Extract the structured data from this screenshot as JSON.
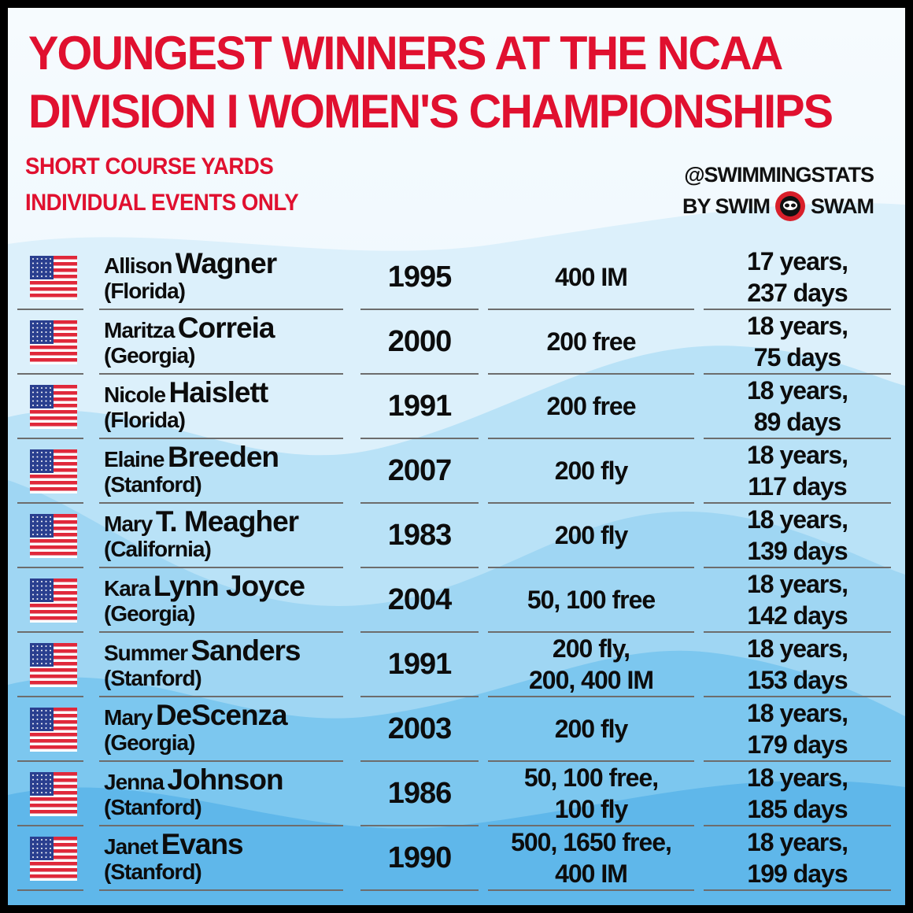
{
  "title_line1": "YOUNGEST WINNERS AT THE NCAA",
  "title_line2": "DIVISION I WOMEN'S CHAMPIONSHIPS",
  "subtitle_line1": "SHORT COURSE YARDS",
  "subtitle_line2": "INDIVIDUAL EVENTS ONLY",
  "brand_line1": "@SWIMMINGSTATS",
  "brand_by": "BY SWIM",
  "brand_swam": "SWAM",
  "colors": {
    "title_red": "#e0102f",
    "flag_red": "#e0283a",
    "flag_blue": "#2a3f8f",
    "bg_light": "#f0f8fd",
    "wave_blue": "#7cc7ef"
  },
  "rows": [
    {
      "flag": "usa-flag-icon",
      "first": "Allison",
      "last": "Wagner",
      "school": "(Florida)",
      "year": "1995",
      "event1": "400 IM",
      "event2": "",
      "age1": "17 years,",
      "age2": "237 days"
    },
    {
      "flag": "usa-flag-icon",
      "first": "Maritza",
      "last": "Correia",
      "school": "(Georgia)",
      "year": "2000",
      "event1": "200 free",
      "event2": "",
      "age1": "18 years,",
      "age2": "75 days"
    },
    {
      "flag": "usa-flag-icon",
      "first": "Nicole",
      "last": "Haislett",
      "school": "(Florida)",
      "year": "1991",
      "event1": "200 free",
      "event2": "",
      "age1": "18 years,",
      "age2": "89 days"
    },
    {
      "flag": "usa-flag-icon",
      "first": "Elaine",
      "last": "Breeden",
      "school": "(Stanford)",
      "year": "2007",
      "event1": "200 fly",
      "event2": "",
      "age1": "18 years,",
      "age2": "117 days"
    },
    {
      "flag": "usa-flag-icon",
      "first": "Mary",
      "last": "T. Meagher",
      "school": "(California)",
      "year": "1983",
      "event1": "200 fly",
      "event2": "",
      "age1": "18 years,",
      "age2": "139 days"
    },
    {
      "flag": "usa-flag-icon",
      "first": "Kara",
      "last": "Lynn Joyce",
      "school": "(Georgia)",
      "year": "2004",
      "event1": "50, 100 free",
      "event2": "",
      "age1": "18 years,",
      "age2": "142 days"
    },
    {
      "flag": "usa-flag-icon",
      "first": "Summer",
      "last": "Sanders",
      "school": "(Stanford)",
      "year": "1991",
      "event1": "200 fly,",
      "event2": "200, 400 IM",
      "age1": "18 years,",
      "age2": "153 days"
    },
    {
      "flag": "usa-flag-icon",
      "first": "Mary",
      "last": "DeScenza",
      "school": "(Georgia)",
      "year": "2003",
      "event1": "200 fly",
      "event2": "",
      "age1": "18 years,",
      "age2": "179 days"
    },
    {
      "flag": "usa-flag-icon",
      "first": "Jenna",
      "last": "Johnson",
      "school": "(Stanford)",
      "year": "1986",
      "event1": "50, 100 free,",
      "event2": "100 fly",
      "age1": "18 years,",
      "age2": "185 days"
    },
    {
      "flag": "usa-flag-icon",
      "first": "Janet",
      "last": "Evans",
      "school": "(Stanford)",
      "year": "1990",
      "event1": "500, 1650 free,",
      "event2": "400 IM",
      "age1": "18 years,",
      "age2": "199 days"
    }
  ]
}
